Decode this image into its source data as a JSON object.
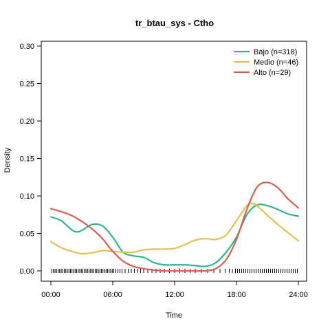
{
  "chart_data": {
    "type": "line",
    "title": "tr_btau_sys - Ctho",
    "xlabel": "Time",
    "ylabel": "Density",
    "xlim": [
      0,
      24
    ],
    "ylim": [
      0,
      0.3
    ],
    "x_ticks": [
      0,
      6,
      12,
      18,
      24
    ],
    "x_tick_labels": [
      "00:00",
      "06:00",
      "12:00",
      "18:00",
      "24:00"
    ],
    "y_ticks": [
      0,
      0.05,
      0.1,
      0.15,
      0.2,
      0.25,
      0.3
    ],
    "y_tick_labels": [
      "0.00",
      "0.05",
      "0.10",
      "0.15",
      "0.20",
      "0.25",
      "0.30"
    ],
    "legend_position": "top-right",
    "grid": false,
    "series": [
      {
        "name": "Bajo (n=318)",
        "color": "#2fb391",
        "x": [
          0,
          1,
          2,
          2.5,
          3,
          4,
          5,
          6,
          7,
          8,
          9,
          10,
          11,
          12,
          13,
          14,
          15,
          16,
          17,
          18,
          19,
          20,
          21,
          22,
          23,
          24
        ],
        "y": [
          0.072,
          0.067,
          0.055,
          0.052,
          0.054,
          0.062,
          0.06,
          0.045,
          0.025,
          0.02,
          0.018,
          0.011,
          0.008,
          0.008,
          0.008,
          0.007,
          0.006,
          0.011,
          0.025,
          0.045,
          0.075,
          0.088,
          0.087,
          0.082,
          0.076,
          0.073
        ]
      },
      {
        "name": "Medio (n=46)",
        "color": "#e3bf57",
        "x": [
          0,
          1,
          2,
          3,
          4,
          5,
          6,
          7,
          8,
          9,
          10,
          11,
          12,
          13,
          14,
          15,
          16,
          17,
          18,
          19,
          19.5,
          20,
          21,
          22,
          23,
          24
        ],
        "y": [
          0.039,
          0.031,
          0.026,
          0.023,
          0.024,
          0.027,
          0.026,
          0.025,
          0.025,
          0.028,
          0.029,
          0.029,
          0.03,
          0.035,
          0.041,
          0.043,
          0.042,
          0.048,
          0.067,
          0.087,
          0.09,
          0.087,
          0.074,
          0.062,
          0.051,
          0.04
        ]
      },
      {
        "name": "Alto (n=29)",
        "color": "#d6604d",
        "x": [
          0,
          1,
          2,
          3,
          4,
          5,
          6,
          7,
          8,
          9,
          10,
          11,
          12,
          13,
          14,
          15,
          16,
          17,
          18,
          19,
          20,
          21,
          22,
          23,
          24
        ],
        "y": [
          0.083,
          0.079,
          0.074,
          0.066,
          0.056,
          0.043,
          0.026,
          0.013,
          0.006,
          0.003,
          0.001,
          0.0,
          0.0,
          0.0,
          0.0,
          0.0,
          0.003,
          0.015,
          0.042,
          0.082,
          0.112,
          0.118,
          0.111,
          0.096,
          0.084
        ]
      }
    ],
    "rug": [
      0.1,
      0.25,
      0.4,
      0.55,
      0.7,
      0.85,
      1.0,
      1.15,
      1.3,
      1.45,
      1.6,
      1.75,
      1.9,
      2.05,
      2.2,
      2.35,
      2.5,
      2.65,
      2.8,
      2.95,
      3.1,
      3.25,
      3.4,
      3.55,
      3.7,
      3.85,
      4.0,
      4.15,
      4.3,
      4.45,
      4.6,
      4.75,
      4.9,
      5.05,
      5.2,
      5.35,
      5.5,
      5.65,
      5.8,
      5.95,
      6.1,
      6.3,
      6.5,
      6.7,
      6.9,
      7.2,
      7.5,
      7.8,
      8.1,
      8.4,
      8.7,
      9.0,
      9.4,
      9.8,
      10.2,
      10.6,
      11.0,
      11.5,
      12.0,
      12.5,
      13.0,
      13.5,
      14.0,
      14.6,
      15.2,
      15.8,
      16.4,
      16.9,
      17.3,
      17.6,
      17.9,
      18.1,
      18.3,
      18.5,
      18.7,
      18.9,
      19.1,
      19.3,
      19.5,
      19.7,
      19.9,
      20.1,
      20.3,
      20.5,
      20.7,
      20.9,
      21.1,
      21.3,
      21.5,
      21.7,
      21.9,
      22.1,
      22.3,
      22.5,
      22.7,
      22.9,
      23.1,
      23.3,
      23.5,
      23.7,
      23.9
    ]
  }
}
